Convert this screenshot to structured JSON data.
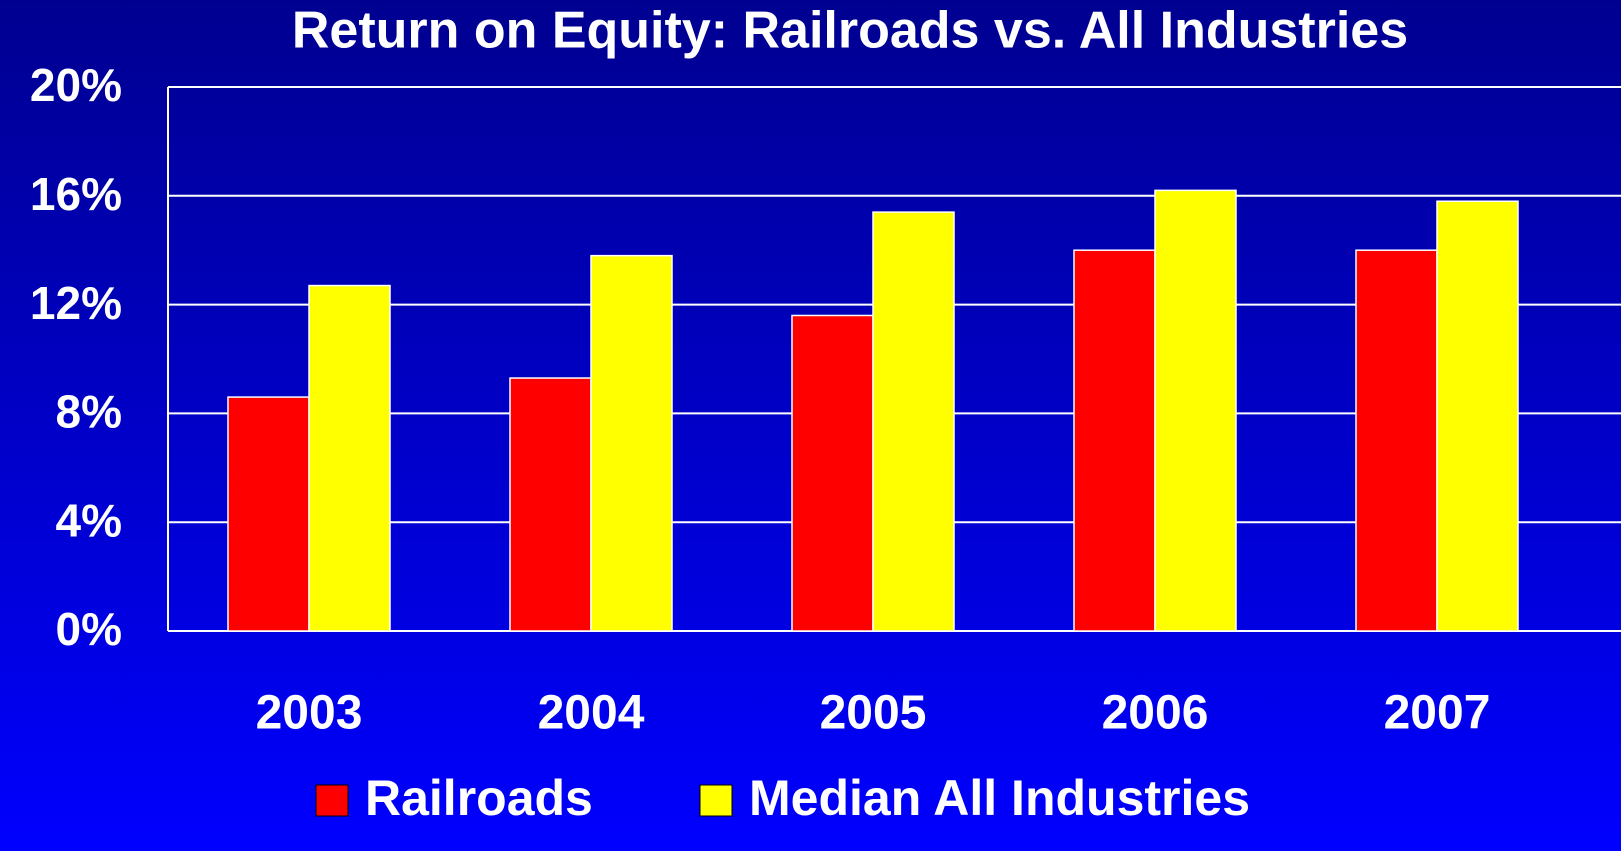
{
  "chart_data": {
    "type": "bar",
    "title": "Return on Equity: Railroads vs. All Industries",
    "categories": [
      "2003",
      "2004",
      "2005",
      "2006",
      "2007"
    ],
    "series": [
      {
        "name": "Railroads",
        "color": "#ff0000",
        "values": [
          8.6,
          9.3,
          11.6,
          14.0,
          14.0
        ]
      },
      {
        "name": "Median All Industries",
        "color": "#ffff00",
        "values": [
          12.7,
          13.8,
          15.4,
          16.2,
          15.8
        ]
      }
    ],
    "ylim": [
      0,
      20
    ],
    "yticks": [
      {
        "value": 0,
        "label": "0%"
      },
      {
        "value": 4,
        "label": "4%"
      },
      {
        "value": 8,
        "label": "8%"
      },
      {
        "value": 12,
        "label": "12%"
      },
      {
        "value": 16,
        "label": "16%"
      },
      {
        "value": 20,
        "label": "20%"
      }
    ],
    "grid": true,
    "legend": "bottom"
  }
}
